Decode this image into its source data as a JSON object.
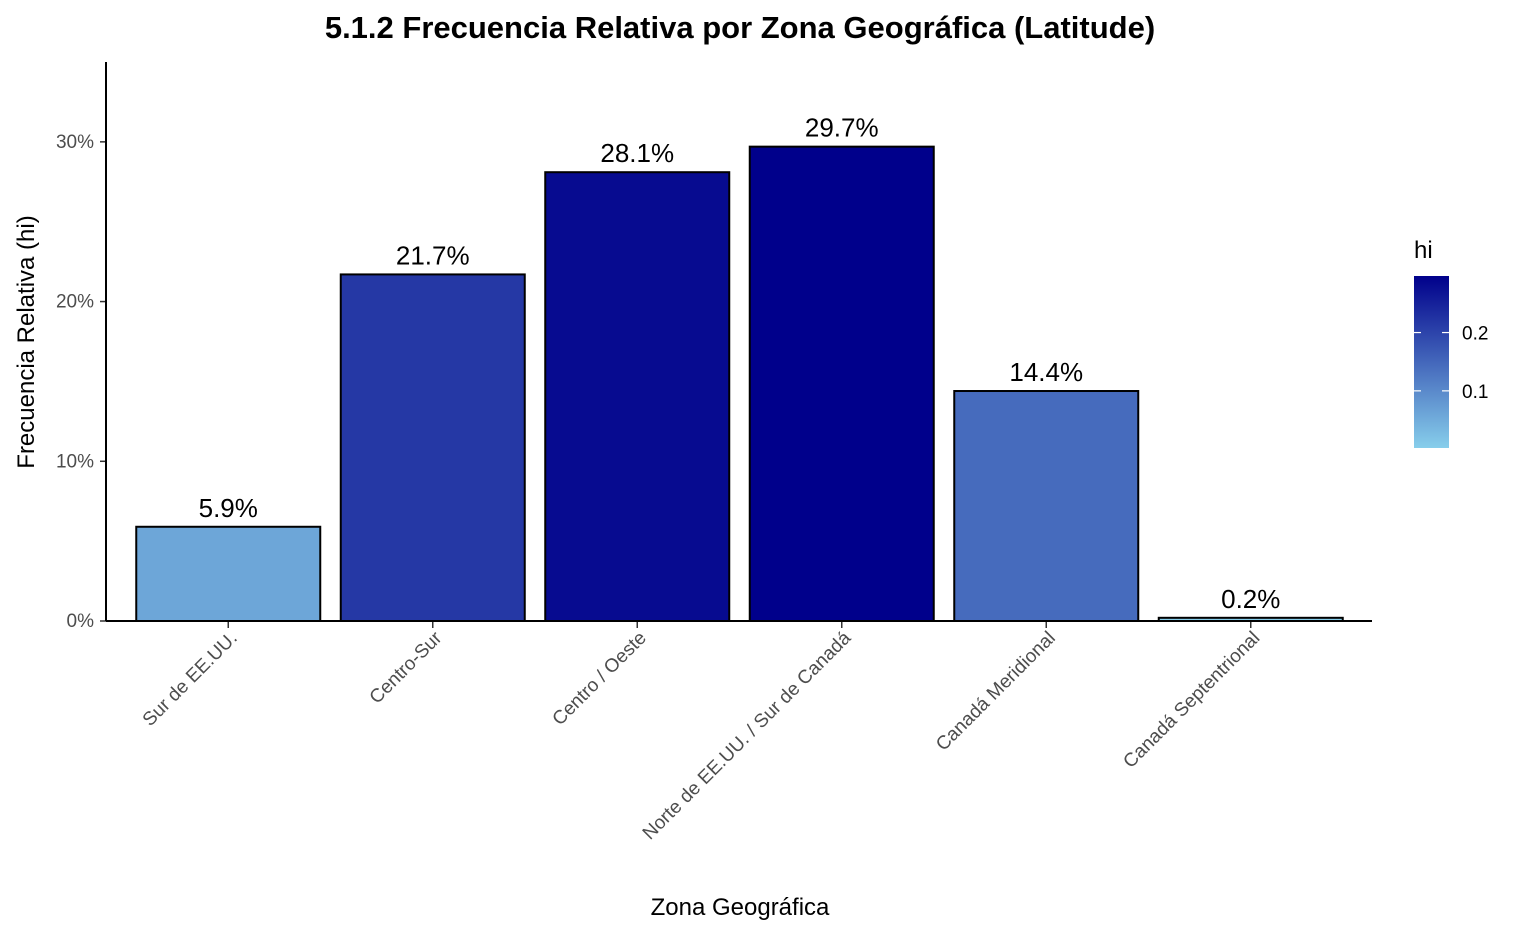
{
  "chart_data": {
    "type": "bar",
    "title": "5.1.2 Frecuencia Relativa por Zona Geográfica (Latitude)",
    "xlabel": "Zona Geográfica",
    "ylabel": "Frecuencia Relativa (hi)",
    "categories": [
      "Sur de EE.UU.",
      "Centro-Sur",
      "Centro / Oeste",
      "Norte de EE.UU. / Sur de Canadá",
      "Canadá Meridional",
      "Canadá Septentrional"
    ],
    "values": [
      0.059,
      0.217,
      0.281,
      0.297,
      0.144,
      0.002
    ],
    "data_labels": [
      "5.9%",
      "21.7%",
      "28.1%",
      "29.7%",
      "14.4%",
      "0.2%"
    ],
    "ylim": [
      0,
      0.35
    ],
    "y_ticks": [
      0,
      0.1,
      0.2,
      0.3
    ],
    "y_tick_labels": [
      "0%",
      "10%",
      "20%",
      "30%"
    ],
    "grid": false,
    "legend": {
      "title": "hi",
      "placement": "right",
      "type": "colorbar",
      "range": [
        0.002,
        0.297
      ],
      "ticks": [
        0.1,
        0.2
      ],
      "tick_labels": [
        "0.1",
        "0.2"
      ],
      "color_low": "#87ceeb",
      "color_high": "#00008b"
    }
  }
}
